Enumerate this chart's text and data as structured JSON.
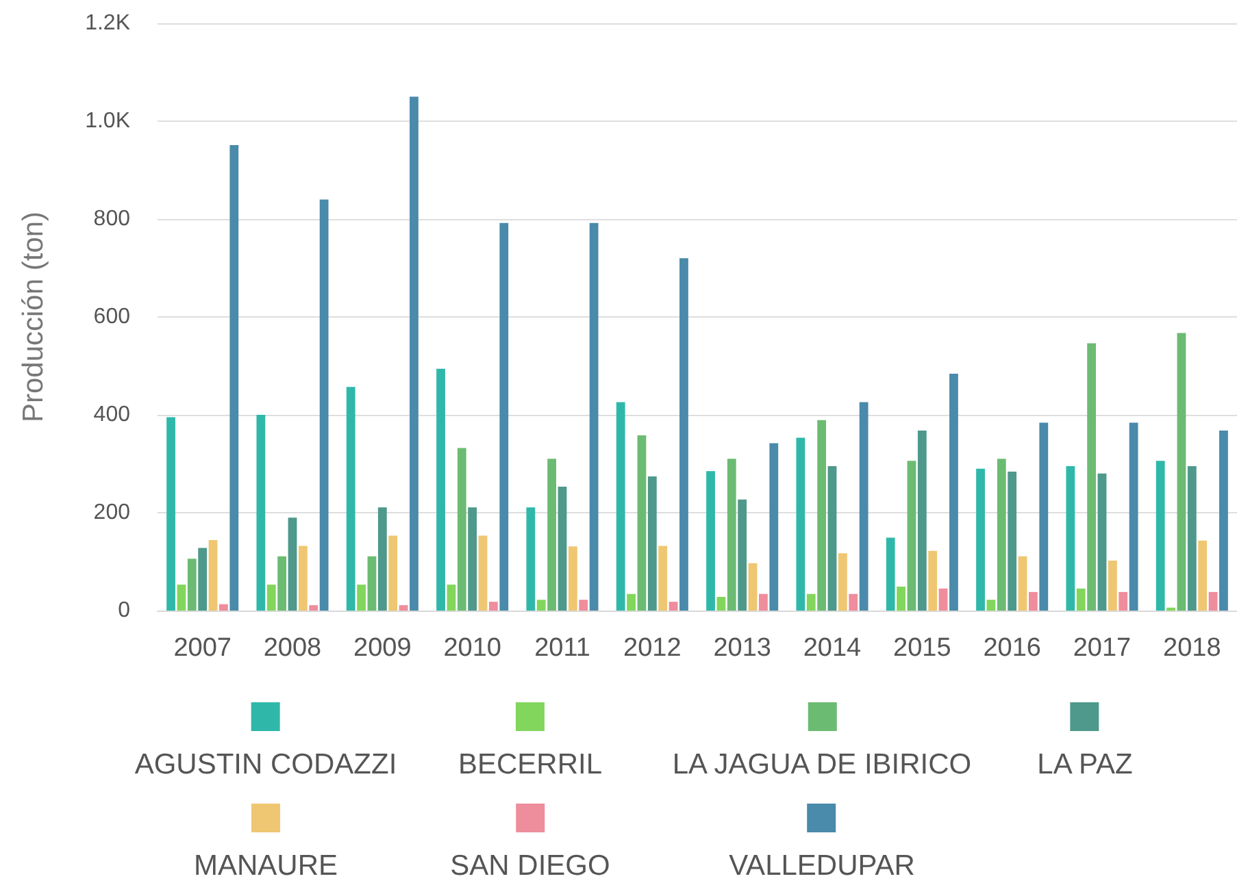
{
  "chart_data": {
    "type": "bar",
    "ylabel": "Producción (ton)",
    "categories": [
      "2007",
      "2008",
      "2009",
      "2010",
      "2011",
      "2012",
      "2013",
      "2014",
      "2015",
      "2016",
      "2017",
      "2018"
    ],
    "series": [
      {
        "name": "AGUSTIN CODAZZI",
        "color": "#2fb8aa",
        "values": [
          395,
          400,
          457,
          494,
          211,
          426,
          285,
          353,
          149,
          290,
          295,
          306
        ]
      },
      {
        "name": "BECERRIL",
        "color": "#82d65c",
        "values": [
          53,
          53,
          53,
          53,
          22,
          34,
          28,
          34,
          49,
          22,
          45,
          6
        ]
      },
      {
        "name": "LA JAGUA DE IBIRICO",
        "color": "#6cbb72",
        "values": [
          106,
          111,
          111,
          332,
          310,
          358,
          310,
          389,
          306,
          310,
          546,
          567
        ]
      },
      {
        "name": "LA PAZ",
        "color": "#4e998b",
        "values": [
          128,
          190,
          211,
          211,
          253,
          274,
          227,
          295,
          368,
          284,
          280,
          295
        ]
      },
      {
        "name": "MANAURE",
        "color": "#efc772",
        "values": [
          144,
          132,
          153,
          153,
          131,
          132,
          97,
          117,
          122,
          111,
          102,
          143
        ]
      },
      {
        "name": "SAN DIEGO",
        "color": "#ee8d9c",
        "values": [
          13,
          11,
          11,
          18,
          22,
          18,
          34,
          34,
          45,
          38,
          38,
          38
        ]
      },
      {
        "name": "VALLEDUPAR",
        "color": "#4a8aaa",
        "values": [
          951,
          840,
          1050,
          792,
          792,
          720,
          342,
          426,
          484,
          384,
          384,
          368
        ]
      }
    ],
    "ylim": [
      0,
      1200
    ],
    "yticks": [
      0,
      200,
      400,
      600,
      800,
      {
        "value": 1000,
        "label": "1.0K"
      },
      {
        "value": 1200,
        "label": "1.2K"
      }
    ],
    "grid": "y",
    "legend": "bottom"
  }
}
